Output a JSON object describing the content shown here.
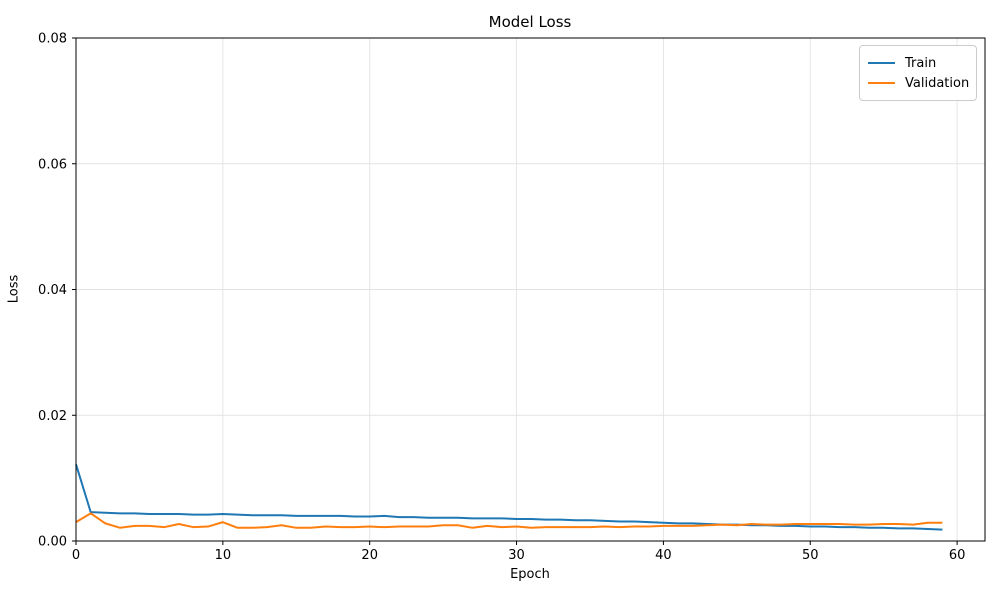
{
  "chart_data": {
    "type": "line",
    "title": "Model Loss",
    "xlabel": "Epoch",
    "ylabel": "Loss",
    "xlim": [
      0,
      61.9
    ],
    "ylim": [
      0,
      0.08
    ],
    "xticks": [
      0,
      10,
      20,
      30,
      40,
      50,
      60
    ],
    "xtick_labels": [
      "0",
      "10",
      "20",
      "30",
      "40",
      "50",
      "60"
    ],
    "yticks": [
      0,
      0.02,
      0.04,
      0.06,
      0.08
    ],
    "ytick_labels": [
      "0.00",
      "0.02",
      "0.04",
      "0.06",
      "0.08"
    ],
    "grid": true,
    "legend_position": "upper right",
    "x": [
      0,
      1,
      2,
      3,
      4,
      5,
      6,
      7,
      8,
      9,
      10,
      11,
      12,
      13,
      14,
      15,
      16,
      17,
      18,
      19,
      20,
      21,
      22,
      23,
      24,
      25,
      26,
      27,
      28,
      29,
      30,
      31,
      32,
      33,
      34,
      35,
      36,
      37,
      38,
      39,
      40,
      41,
      42,
      43,
      44,
      45,
      46,
      47,
      48,
      49,
      50,
      51,
      52,
      53,
      54,
      55,
      56,
      57,
      58,
      59
    ],
    "series": [
      {
        "name": "Train",
        "color": "#1f77b4",
        "values": [
          0.0122,
          0.0046,
          0.0045,
          0.0044,
          0.0044,
          0.0043,
          0.0043,
          0.0043,
          0.0042,
          0.0042,
          0.0043,
          0.0042,
          0.0041,
          0.0041,
          0.0041,
          0.004,
          0.004,
          0.004,
          0.004,
          0.0039,
          0.0039,
          0.004,
          0.0038,
          0.0038,
          0.0037,
          0.0037,
          0.0037,
          0.0036,
          0.0036,
          0.0036,
          0.0035,
          0.0035,
          0.0034,
          0.0034,
          0.0033,
          0.0033,
          0.0032,
          0.0031,
          0.0031,
          0.003,
          0.0029,
          0.0028,
          0.0028,
          0.0027,
          0.0026,
          0.0026,
          0.0025,
          0.0025,
          0.0024,
          0.0024,
          0.0023,
          0.0023,
          0.0022,
          0.0022,
          0.0021,
          0.0021,
          0.002,
          0.002,
          0.0019,
          0.0018
        ]
      },
      {
        "name": "Validation",
        "color": "#ff7f0e",
        "values": [
          0.003,
          0.0044,
          0.0028,
          0.0021,
          0.0024,
          0.0024,
          0.0022,
          0.0027,
          0.0022,
          0.0023,
          0.003,
          0.0021,
          0.0021,
          0.0022,
          0.0025,
          0.0021,
          0.0021,
          0.0023,
          0.0022,
          0.0022,
          0.0023,
          0.0022,
          0.0023,
          0.0023,
          0.0023,
          0.0025,
          0.0025,
          0.0021,
          0.0024,
          0.0022,
          0.0023,
          0.0021,
          0.0022,
          0.0022,
          0.0022,
          0.0022,
          0.0023,
          0.0022,
          0.0023,
          0.0023,
          0.0024,
          0.0024,
          0.0024,
          0.0025,
          0.0026,
          0.0025,
          0.0027,
          0.0026,
          0.0026,
          0.0027,
          0.0027,
          0.0027,
          0.0027,
          0.0026,
          0.0026,
          0.0027,
          0.0027,
          0.0026,
          0.0029,
          0.0029
        ]
      }
    ],
    "colors": {
      "grid": "#e3e3e3",
      "spine": "#000000",
      "text": "#000000",
      "background": "#ffffff"
    }
  }
}
